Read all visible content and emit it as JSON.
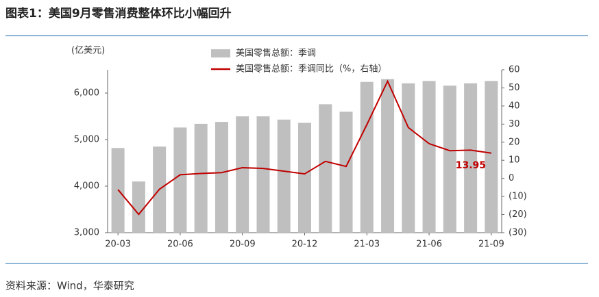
{
  "chart_data": {
    "type": "bar_line",
    "title": "图表1：美国9月零售消费整体环比小幅回升",
    "y_axis_label": "(亿美元)",
    "source": "资料来源：Wind，华泰研究",
    "categories": [
      "20-03",
      null,
      null,
      "20-06",
      null,
      null,
      "20-09",
      null,
      null,
      "20-12",
      null,
      null,
      "21-03",
      null,
      null,
      "21-06",
      null,
      null,
      "21-09"
    ],
    "series": [
      {
        "name": "美国零售总额：季调",
        "type": "bar",
        "color": "#bfbfbf",
        "values": [
          4820,
          4100,
          4850,
          5260,
          5340,
          5380,
          5500,
          5500,
          5430,
          5360,
          5760,
          5600,
          6240,
          6300,
          6210,
          6260,
          6160,
          6210,
          6260
        ]
      },
      {
        "name": "美国零售总额：季调同比（%，右轴）",
        "type": "line",
        "axis": "y2",
        "color": "#c00000",
        "values": [
          -6.2,
          -19.9,
          -6,
          2,
          2.7,
          3.2,
          5.9,
          5.5,
          4,
          2.5,
          9.4,
          6.6,
          29.7,
          53.7,
          28.1,
          19.2,
          15.3,
          15.6,
          13.95
        ],
        "value_labels": [
          null,
          null,
          null,
          null,
          null,
          null,
          null,
          null,
          null,
          null,
          null,
          null,
          null,
          null,
          null,
          null,
          null,
          null,
          "13.95"
        ]
      }
    ],
    "ylim": [
      3000,
      6500
    ],
    "yticks": [
      {
        "value": 3000,
        "label": "3,000"
      },
      {
        "value": 4000,
        "label": "4,000"
      },
      {
        "value": 5000,
        "label": "5,000"
      },
      {
        "value": 6000,
        "label": "6,000"
      }
    ],
    "y2lim": [
      -30,
      60
    ],
    "y2ticks": [
      {
        "value": -30,
        "label": "(30)"
      },
      {
        "value": -20,
        "label": "(20)"
      },
      {
        "value": -10,
        "label": "(10)"
      },
      0,
      10,
      20,
      30,
      40,
      50,
      60
    ]
  }
}
